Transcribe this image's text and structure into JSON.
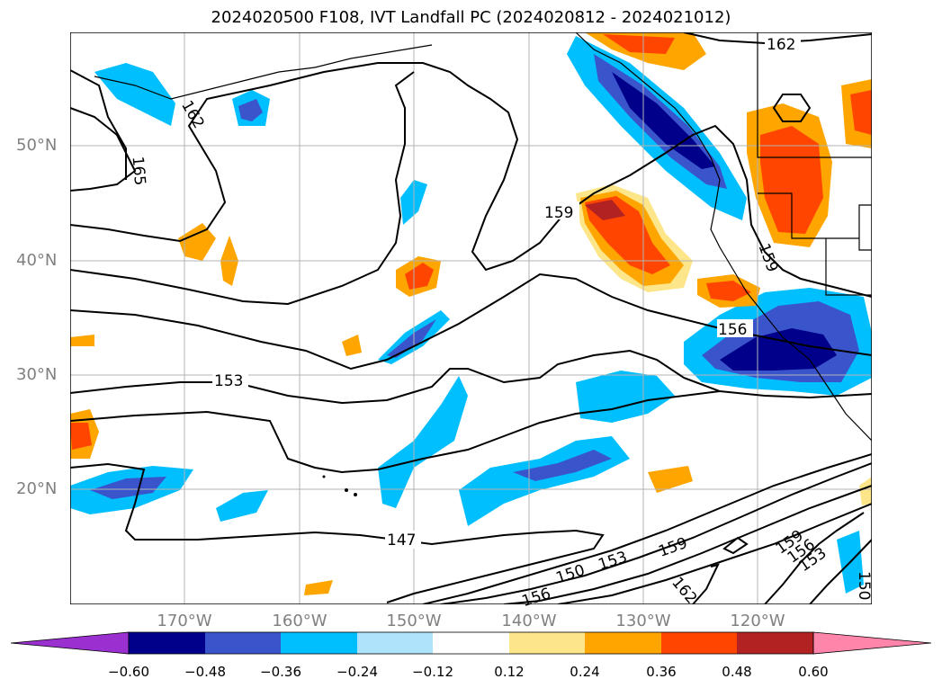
{
  "title": "2024020500 F108, IVT Landfall PC (2024020812 - 2024021012)",
  "lat_labels": [
    "50°N",
    "40°N",
    "30°N",
    "20°N"
  ],
  "lon_labels": [
    "170°W",
    "160°W",
    "150°W",
    "140°W",
    "130°W",
    "120°W"
  ],
  "contour_labels": [
    "162",
    "162",
    "165",
    "159",
    "159",
    "156",
    "153",
    "147",
    "150",
    "153",
    "159",
    "156",
    "162",
    "159",
    "156",
    "153",
    "150"
  ],
  "colorbar": {
    "ticks": [
      "−0.60",
      "−0.48",
      "−0.36",
      "−0.24",
      "−0.12",
      "0.12",
      "0.24",
      "0.36",
      "0.48",
      "0.60"
    ],
    "colors": [
      "#9b30d0",
      "#00008b",
      "#3a55cc",
      "#00bfff",
      "#afe3fb",
      "#ffffff",
      "#fde68a",
      "#ffa500",
      "#ff4500",
      "#b22222",
      "#ff85aa"
    ]
  },
  "colors": {
    "neg_strong": "#00008b",
    "neg_med": "#3a55cc",
    "neg_light": "#00bfff",
    "neg_faint": "#afe3fb",
    "pos_faint": "#fde68a",
    "pos_light": "#ffa500",
    "pos_med": "#ff4500",
    "pos_strong": "#b22222"
  }
}
